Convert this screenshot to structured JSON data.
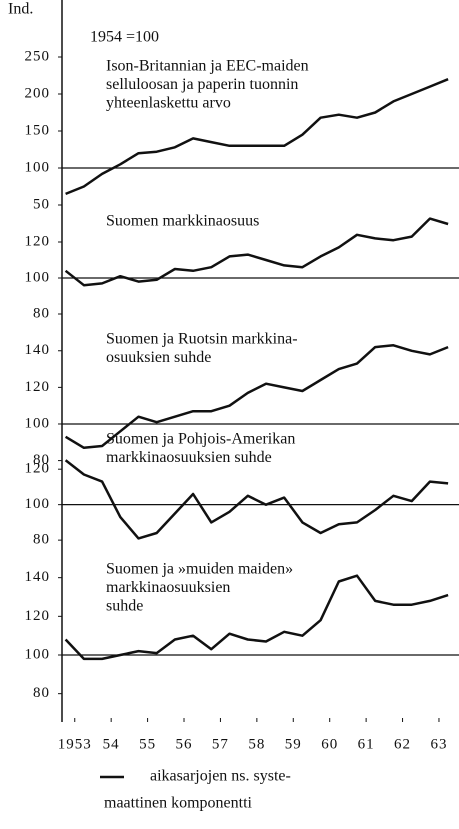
{
  "ylabel": "Ind.",
  "annotation": "1954 =100",
  "legend": [
    "aikasarjojen ns. syste-",
    "maattinen komponentti"
  ],
  "chart_data": [
    {
      "type": "line",
      "title": [
        "Ison-Britannian ja EEC-maiden",
        "selluloosan ja paperin tuonnin",
        "yhteenlaskettu arvo"
      ],
      "x": [
        1952.75,
        1953.25,
        1953.75,
        1954.25,
        1954.75,
        1955.25,
        1955.75,
        1956.25,
        1956.75,
        1957.25,
        1957.75,
        1958.25,
        1958.75,
        1959.25,
        1959.75,
        1960.25,
        1960.75,
        1961.25,
        1961.75,
        1962.25,
        1962.75,
        1963.25
      ],
      "values": [
        65,
        75,
        92,
        105,
        120,
        122,
        128,
        140,
        135,
        130,
        130,
        130,
        130,
        145,
        168,
        172,
        168,
        175,
        190,
        200,
        210,
        220
      ],
      "ylim": [
        40,
        270
      ],
      "yticks": [
        50,
        100,
        150,
        200,
        250
      ],
      "reference_line": 100,
      "color": "#111"
    },
    {
      "type": "line",
      "title": [
        "Suomen markkinaosuus"
      ],
      "x": [
        1952.75,
        1953.25,
        1953.75,
        1954.25,
        1954.75,
        1955.25,
        1955.75,
        1956.25,
        1956.75,
        1957.25,
        1957.75,
        1958.25,
        1958.75,
        1959.25,
        1959.75,
        1960.25,
        1960.75,
        1961.25,
        1961.75,
        1962.25,
        1962.75,
        1963.25
      ],
      "values": [
        104,
        96,
        97,
        101,
        98,
        99,
        105,
        104,
        106,
        112,
        113,
        110,
        107,
        106,
        112,
        117,
        124,
        122,
        121,
        123,
        133,
        130
      ],
      "ylim": [
        75,
        135
      ],
      "yticks": [
        80,
        100,
        120
      ],
      "reference_line": 100,
      "color": "#111"
    },
    {
      "type": "line",
      "title": [
        "Suomen ja Ruotsin markkina-",
        "osuuksien suhde"
      ],
      "x": [
        1952.75,
        1953.25,
        1953.75,
        1954.25,
        1954.75,
        1955.25,
        1955.75,
        1956.25,
        1956.75,
        1957.25,
        1957.75,
        1958.25,
        1958.75,
        1959.25,
        1959.75,
        1960.25,
        1960.75,
        1961.25,
        1961.75,
        1962.25,
        1962.75,
        1963.25
      ],
      "values": [
        93,
        87,
        88,
        96,
        104,
        101,
        104,
        107,
        107,
        110,
        117,
        122,
        120,
        118,
        124,
        130,
        133,
        142,
        143,
        140,
        138,
        142
      ],
      "ylim": [
        75,
        145
      ],
      "yticks": [
        80,
        100,
        120,
        140
      ],
      "reference_line": 100,
      "color": "#111"
    },
    {
      "type": "line",
      "title": [
        "Suomen ja Pohjois-Amerikan",
        "markkinaosuuksien suhde"
      ],
      "x": [
        1952.75,
        1953.25,
        1953.75,
        1954.25,
        1954.75,
        1955.25,
        1955.75,
        1956.25,
        1956.75,
        1957.25,
        1957.75,
        1958.25,
        1958.75,
        1959.25,
        1959.75,
        1960.25,
        1960.75,
        1961.25,
        1961.75,
        1962.25,
        1962.75,
        1963.25
      ],
      "values": [
        125,
        117,
        113,
        93,
        81,
        84,
        95,
        106,
        90,
        96,
        105,
        100,
        104,
        90,
        84,
        89,
        90,
        97,
        105,
        102,
        113,
        112
      ],
      "ylim": [
        75,
        128
      ],
      "yticks": [
        80,
        100,
        120
      ],
      "reference_line": 100,
      "color": "#111"
    },
    {
      "type": "line",
      "title": [
        "Suomen ja »muiden maiden»",
        "markkinaosuuksien",
        "suhde"
      ],
      "x": [
        1952.75,
        1953.25,
        1953.75,
        1954.25,
        1954.75,
        1955.25,
        1955.75,
        1956.25,
        1956.75,
        1957.25,
        1957.75,
        1958.25,
        1958.75,
        1959.25,
        1959.75,
        1960.25,
        1960.75,
        1961.25,
        1961.75,
        1962.25,
        1962.75,
        1963.25
      ],
      "values": [
        108,
        98,
        98,
        100,
        102,
        101,
        108,
        110,
        103,
        111,
        108,
        107,
        112,
        110,
        118,
        138,
        141,
        128,
        126,
        126,
        128,
        131
      ],
      "ylim": [
        70,
        145
      ],
      "yticks": [
        80,
        100,
        120,
        140
      ],
      "reference_line": 100,
      "color": "#111",
      "xlim": [
        1952.65,
        1963.55
      ],
      "xticks": [
        1953,
        {
          "value": 1954,
          "label": "54"
        },
        {
          "value": 1955,
          "label": "55"
        },
        {
          "value": 1956,
          "label": "56"
        },
        {
          "value": 1957,
          "label": "57"
        },
        {
          "value": 1958,
          "label": "58"
        },
        {
          "value": 1959,
          "label": "59"
        },
        {
          "value": 1960,
          "label": "60"
        },
        {
          "value": 1961,
          "label": "61"
        },
        {
          "value": 1962,
          "label": "62"
        },
        {
          "value": 1963,
          "label": "63"
        }
      ]
    }
  ]
}
